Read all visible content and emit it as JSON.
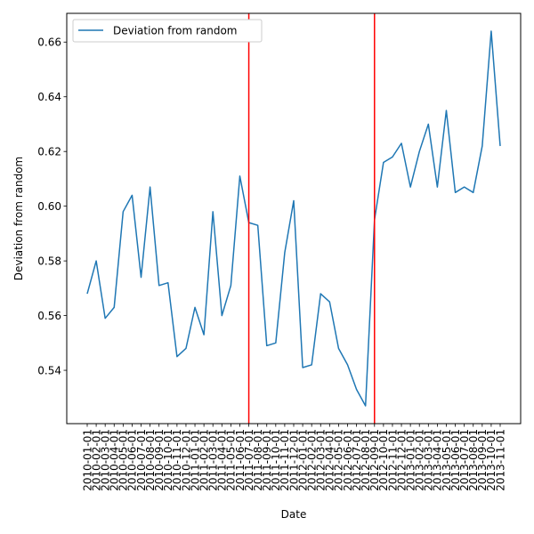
{
  "chart_data": {
    "type": "line",
    "xlabel": "Date",
    "ylabel": "Deviation from random",
    "ylim": [
      0.5205,
      0.6705
    ],
    "yticks": [
      0.54,
      0.56,
      0.58,
      0.6,
      0.62,
      0.64,
      0.66
    ],
    "ytick_labels": [
      "0.54",
      "0.56",
      "0.58",
      "0.60",
      "0.62",
      "0.64",
      "0.66"
    ],
    "legend": {
      "placement": "upper-left",
      "entries": [
        "Deviation from random"
      ]
    },
    "grid": false,
    "x_categories": [
      "2010-01-01",
      "2010-02-01",
      "2010-03-01",
      "2010-04-01",
      "2010-05-01",
      "2010-06-01",
      "2010-07-01",
      "2010-08-01",
      "2010-09-01",
      "2010-10-01",
      "2010-11-01",
      "2010-12-01",
      "2011-01-01",
      "2011-02-01",
      "2011-03-01",
      "2011-04-01",
      "2011-05-01",
      "2011-06-01",
      "2011-07-01",
      "2011-08-01",
      "2011-09-01",
      "2011-10-01",
      "2011-11-01",
      "2011-12-01",
      "2012-01-01",
      "2012-02-01",
      "2012-03-01",
      "2012-04-01",
      "2012-05-01",
      "2012-06-01",
      "2012-07-01",
      "2012-08-01",
      "2012-09-01",
      "2012-10-01",
      "2012-11-01",
      "2012-12-01",
      "2013-01-01",
      "2013-02-01",
      "2013-03-01",
      "2013-04-01",
      "2013-05-01",
      "2013-06-01",
      "2013-07-01",
      "2013-08-01",
      "2013-09-01",
      "2013-10-01",
      "2013-11-01"
    ],
    "series": [
      {
        "name": "Deviation from random",
        "color": "#1f77b4",
        "values": [
          0.568,
          0.58,
          0.559,
          0.563,
          0.598,
          0.604,
          0.574,
          0.607,
          0.571,
          0.572,
          0.545,
          0.548,
          0.563,
          0.553,
          0.598,
          0.56,
          0.571,
          0.611,
          0.594,
          0.593,
          0.549,
          0.55,
          0.583,
          0.602,
          0.541,
          0.542,
          0.568,
          0.565,
          0.548,
          0.542,
          0.533,
          0.527,
          0.595,
          0.616,
          0.618,
          0.623,
          0.607,
          0.62,
          0.63,
          0.607,
          0.635,
          0.605,
          0.607,
          0.605,
          0.622,
          0.664,
          0.622
        ]
      }
    ],
    "vertical_lines": [
      {
        "x": "2011-07-01",
        "color": "#ff0000"
      },
      {
        "x": "2012-09-01",
        "color": "#ff0000"
      }
    ]
  }
}
